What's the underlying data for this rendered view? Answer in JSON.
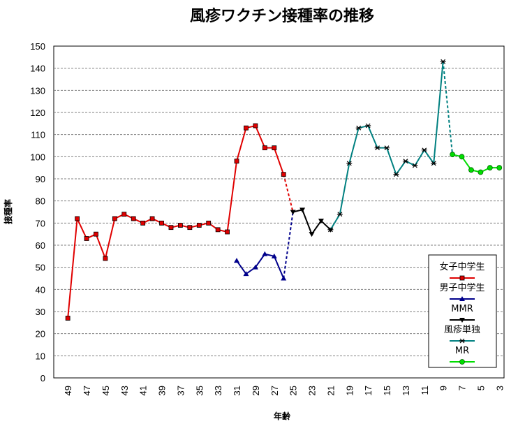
{
  "chart_data": {
    "type": "line",
    "title": "風疹ワクチン接種率の推移",
    "xlabel": "年齢",
    "ylabel": "接種率",
    "ylim": [
      0,
      150
    ],
    "ytick_step": 10,
    "grid": "horizontal dashed",
    "x_axis": {
      "from": 50,
      "to": 3,
      "step": -1
    },
    "x_tick_labels": [
      "49",
      "47",
      "45",
      "43",
      "41",
      "39",
      "37",
      "35",
      "33",
      "31",
      "29",
      "27",
      "25",
      "23",
      "21",
      "19",
      "17",
      "15",
      "13",
      "11",
      "9",
      "7",
      "5",
      "3"
    ],
    "legend_position": "bottom-right",
    "series": [
      {
        "name": "女子中学生",
        "color": "#e00000",
        "marker": "square",
        "points": [
          [
            49,
            27
          ],
          [
            48,
            72
          ],
          [
            47,
            63
          ],
          [
            46,
            65
          ],
          [
            45,
            54
          ],
          [
            44,
            72
          ],
          [
            43,
            74
          ],
          [
            42,
            72
          ],
          [
            41,
            70
          ],
          [
            40,
            72
          ],
          [
            39,
            70
          ],
          [
            38,
            68
          ],
          [
            37,
            69
          ],
          [
            36,
            68
          ],
          [
            35,
            69
          ],
          [
            34,
            70
          ],
          [
            33,
            67
          ],
          [
            32,
            66
          ],
          [
            31,
            98
          ],
          [
            30,
            113
          ],
          [
            29,
            114
          ],
          [
            28,
            104
          ],
          [
            27,
            104
          ],
          [
            26,
            92
          ]
        ]
      },
      {
        "name": "男子中学生",
        "color": "#00008b",
        "marker": "triangle",
        "points": [
          [
            31,
            53
          ],
          [
            30,
            47
          ],
          [
            29,
            50
          ],
          [
            28,
            56
          ],
          [
            27,
            55
          ],
          [
            26,
            45
          ]
        ]
      },
      {
        "name": "MMR",
        "color": "#000000",
        "marker": "triangle-down",
        "points": [
          [
            25,
            75
          ],
          [
            24,
            76
          ],
          [
            23,
            65
          ],
          [
            22,
            71
          ],
          [
            21,
            67
          ]
        ]
      },
      {
        "name": "風疹単独",
        "color": "#008080",
        "marker": "star",
        "points": [
          [
            21,
            67
          ],
          [
            20,
            74
          ],
          [
            19,
            97
          ],
          [
            18,
            113
          ],
          [
            17,
            114
          ],
          [
            16,
            104
          ],
          [
            15,
            104
          ],
          [
            14,
            92
          ],
          [
            13,
            98
          ],
          [
            12,
            96
          ],
          [
            11,
            103
          ],
          [
            10,
            97
          ],
          [
            9,
            143
          ]
        ]
      },
      {
        "name": "MR",
        "color": "#00dd00",
        "marker": "circle",
        "points": [
          [
            8,
            101
          ],
          [
            7,
            100
          ],
          [
            6,
            94
          ],
          [
            5,
            93
          ],
          [
            4,
            95
          ],
          [
            3,
            95
          ]
        ]
      }
    ],
    "dashed_connectors": [
      {
        "color": "#e00000",
        "points": [
          [
            26,
            92
          ],
          [
            25,
            75
          ]
        ]
      },
      {
        "color": "#00008b",
        "points": [
          [
            26,
            45
          ],
          [
            25,
            75
          ]
        ]
      },
      {
        "color": "#008080",
        "points": [
          [
            9,
            143
          ],
          [
            8,
            101
          ]
        ]
      }
    ]
  }
}
